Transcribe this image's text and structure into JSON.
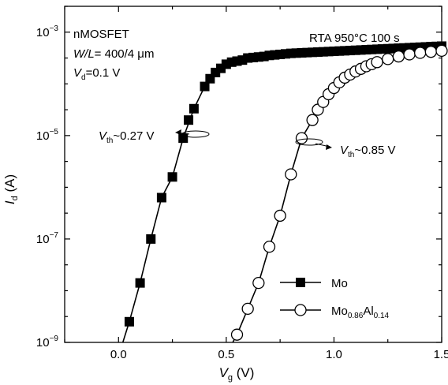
{
  "chart_data": {
    "type": "scatter",
    "x_scale": "linear",
    "y_scale": "log",
    "xlim": [
      -0.25,
      1.5
    ],
    "ylim_exponent": [
      -9,
      -2.5
    ],
    "xlabel": {
      "main": "V",
      "sub": "g",
      "unit": " (V)"
    },
    "ylabel": {
      "main": "I",
      "sub": "d",
      "unit": " (A)"
    },
    "x_ticks": [
      {
        "value": 0.0,
        "label": "0.0"
      },
      {
        "value": 0.5,
        "label": "0.5"
      },
      {
        "value": 1.0,
        "label": "1.0"
      },
      {
        "value": 1.5,
        "label": "1.5"
      }
    ],
    "y_ticks": [
      {
        "exp": -9,
        "base": "10",
        "sup": "−9"
      },
      {
        "exp": -7,
        "base": "10",
        "sup": "−7"
      },
      {
        "exp": -5,
        "base": "10",
        "sup": "−5"
      },
      {
        "exp": -3,
        "base": "10",
        "sup": "−3"
      }
    ],
    "annotations": {
      "device": "nMOSFET",
      "wl_main": "W/L",
      "wl_value": "= 400/4 μm",
      "vd_main": "V",
      "vd_sub": "d",
      "vd_value": "=0.1 V",
      "rta": "RTA 950°C 100 s",
      "vth_mo_main": "V",
      "vth_mo_sub": "th",
      "vth_mo_value": "~0.27 V",
      "vth_moal_main": "V",
      "vth_moal_sub": "th",
      "vth_moal_value": "~0.85 V"
    },
    "series": [
      {
        "name": "Mo",
        "legend_main": "Mo",
        "marker": "filled-square",
        "color": "#000000",
        "points": [
          [
            0.05,
            -8.6
          ],
          [
            0.1,
            -7.85
          ],
          [
            0.15,
            -7.0
          ],
          [
            0.2,
            -6.2
          ],
          [
            0.25,
            -5.8
          ],
          [
            0.3,
            -5.05
          ],
          [
            0.325,
            -4.7
          ],
          [
            0.35,
            -4.48
          ],
          [
            0.4,
            -4.05
          ],
          [
            0.425,
            -3.9
          ],
          [
            0.45,
            -3.78
          ],
          [
            0.475,
            -3.7
          ],
          [
            0.5,
            -3.62
          ],
          [
            0.525,
            -3.58
          ],
          [
            0.55,
            -3.56
          ],
          [
            0.575,
            -3.54
          ],
          [
            0.6,
            -3.5
          ],
          [
            0.625,
            -3.49
          ],
          [
            0.65,
            -3.48
          ],
          [
            0.675,
            -3.47
          ],
          [
            0.7,
            -3.45
          ],
          [
            0.725,
            -3.44
          ],
          [
            0.75,
            -3.43
          ],
          [
            0.775,
            -3.42
          ],
          [
            0.8,
            -3.41
          ],
          [
            0.825,
            -3.405
          ],
          [
            0.85,
            -3.4
          ],
          [
            0.875,
            -3.395
          ],
          [
            0.9,
            -3.39
          ],
          [
            0.925,
            -3.385
          ],
          [
            0.95,
            -3.38
          ],
          [
            0.975,
            -3.375
          ],
          [
            1.0,
            -3.37
          ],
          [
            1.025,
            -3.365
          ],
          [
            1.05,
            -3.36
          ],
          [
            1.075,
            -3.355
          ],
          [
            1.1,
            -3.35
          ],
          [
            1.125,
            -3.345
          ],
          [
            1.15,
            -3.34
          ],
          [
            1.175,
            -3.335
          ],
          [
            1.2,
            -3.33
          ],
          [
            1.225,
            -3.325
          ],
          [
            1.25,
            -3.32
          ],
          [
            1.275,
            -3.315
          ],
          [
            1.3,
            -3.31
          ],
          [
            1.325,
            -3.305
          ],
          [
            1.35,
            -3.3
          ],
          [
            1.375,
            -3.295
          ],
          [
            1.4,
            -3.29
          ],
          [
            1.425,
            -3.285
          ],
          [
            1.45,
            -3.28
          ],
          [
            1.475,
            -3.275
          ],
          [
            1.5,
            -3.27
          ]
        ],
        "line": [
          [
            0.02,
            -9.0
          ],
          [
            0.05,
            -8.6
          ],
          [
            0.1,
            -7.85
          ],
          [
            0.15,
            -7.0
          ],
          [
            0.2,
            -6.2
          ],
          [
            0.25,
            -5.8
          ],
          [
            0.3,
            -5.05
          ],
          [
            0.35,
            -4.48
          ],
          [
            0.4,
            -4.05
          ],
          [
            0.45,
            -3.78
          ],
          [
            0.5,
            -3.62
          ],
          [
            0.6,
            -3.5
          ],
          [
            0.8,
            -3.41
          ],
          [
            1.0,
            -3.37
          ],
          [
            1.2,
            -3.33
          ],
          [
            1.5,
            -3.27
          ]
        ]
      },
      {
        "name": "Mo0.86Al0.14",
        "legend_main": "Mo",
        "legend_sub1": "0.86",
        "legend_mid": "Al",
        "legend_sub2": "0.14",
        "marker": "open-circle",
        "color": "#000000",
        "points": [
          [
            0.55,
            -8.85
          ],
          [
            0.6,
            -8.35
          ],
          [
            0.65,
            -7.85
          ],
          [
            0.7,
            -7.15
          ],
          [
            0.75,
            -6.55
          ],
          [
            0.8,
            -5.75
          ],
          [
            0.85,
            -5.05
          ],
          [
            0.9,
            -4.7
          ],
          [
            0.925,
            -4.5
          ],
          [
            0.95,
            -4.35
          ],
          [
            0.975,
            -4.2
          ],
          [
            1.0,
            -4.08
          ],
          [
            1.025,
            -3.97
          ],
          [
            1.05,
            -3.88
          ],
          [
            1.075,
            -3.82
          ],
          [
            1.1,
            -3.76
          ],
          [
            1.125,
            -3.71
          ],
          [
            1.15,
            -3.66
          ],
          [
            1.175,
            -3.62
          ],
          [
            1.2,
            -3.58
          ],
          [
            1.25,
            -3.52
          ],
          [
            1.3,
            -3.47
          ],
          [
            1.35,
            -3.43
          ],
          [
            1.4,
            -3.4
          ],
          [
            1.45,
            -3.38
          ],
          [
            1.5,
            -3.36
          ]
        ],
        "line": [
          [
            0.53,
            -9.0
          ],
          [
            0.55,
            -8.85
          ],
          [
            0.6,
            -8.35
          ],
          [
            0.65,
            -7.85
          ],
          [
            0.7,
            -7.15
          ],
          [
            0.75,
            -6.55
          ],
          [
            0.8,
            -5.75
          ],
          [
            0.85,
            -5.05
          ],
          [
            0.9,
            -4.7
          ],
          [
            0.95,
            -4.35
          ],
          [
            1.0,
            -4.08
          ],
          [
            1.05,
            -3.88
          ],
          [
            1.1,
            -3.76
          ],
          [
            1.2,
            -3.58
          ],
          [
            1.3,
            -3.47
          ],
          [
            1.4,
            -3.4
          ],
          [
            1.5,
            -3.36
          ]
        ]
      }
    ]
  }
}
